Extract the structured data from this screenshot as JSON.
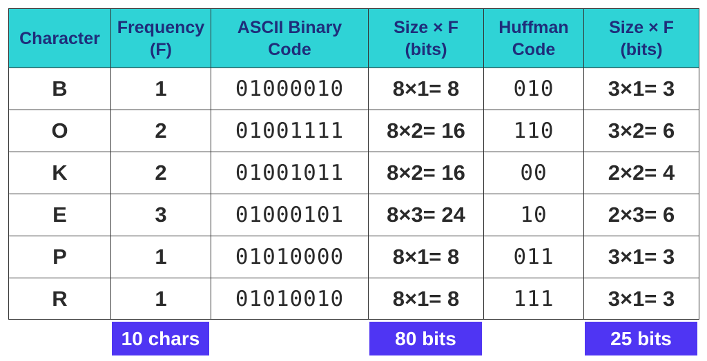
{
  "table": {
    "header": [
      [
        "Character"
      ],
      [
        "Frequency",
        "(F)"
      ],
      [
        "ASCII Binary",
        "Code"
      ],
      [
        "Size × F",
        "(bits)"
      ],
      [
        "Huffman",
        "Code"
      ],
      [
        "Size × F",
        "(bits)"
      ]
    ],
    "rows": [
      [
        "B",
        1,
        "01000010",
        "8×1= 8",
        "010",
        "3×1= 3"
      ],
      [
        "O",
        2,
        "01001111",
        "8×2= 16",
        "110",
        "3×2= 6"
      ],
      [
        "K",
        2,
        "01001011",
        "8×2= 16",
        "00",
        "2×2= 4"
      ],
      [
        "E",
        3,
        "01000101",
        "8×3= 24",
        "10",
        "2×3= 6"
      ],
      [
        "P",
        1,
        "01010000",
        "8×1= 8",
        "011",
        "3×1= 3"
      ],
      [
        "R",
        1,
        "01010010",
        "8×1= 8",
        "111",
        "3×1= 3"
      ]
    ],
    "totals": [
      null,
      "10 chars",
      null,
      "80 bits",
      null,
      "25 bits"
    ]
  }
}
